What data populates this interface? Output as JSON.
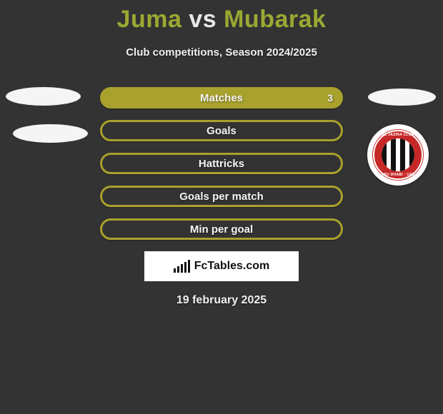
{
  "title": {
    "player1": "Juma",
    "vs": "vs",
    "player2": "Mubarak"
  },
  "subtitle": "Club competitions, Season 2024/2025",
  "stats": {
    "rows": [
      {
        "label": "Matches",
        "value_right": "3",
        "style": "filled"
      },
      {
        "label": "Goals",
        "value_right": "",
        "style": "outline"
      },
      {
        "label": "Hattricks",
        "value_right": "",
        "style": "outline"
      },
      {
        "label": "Goals per match",
        "value_right": "",
        "style": "outline"
      },
      {
        "label": "Min per goal",
        "value_right": "",
        "style": "outline"
      }
    ],
    "colors": {
      "row_fill": "#a8a22d",
      "row_border": "#a8a22d",
      "row_text": "#f5f5f5",
      "background": "#333333"
    }
  },
  "club": {
    "name": "Al Jazira Club",
    "top_text": "AL JAZIRA CLUB",
    "bottom_text": "ABU DHABI · UAE",
    "ring_color": "#c62828",
    "stripe_colors": [
      "#111111",
      "#ffffff"
    ]
  },
  "branding": {
    "site": "FcTables.com"
  },
  "date": "19 february 2025"
}
